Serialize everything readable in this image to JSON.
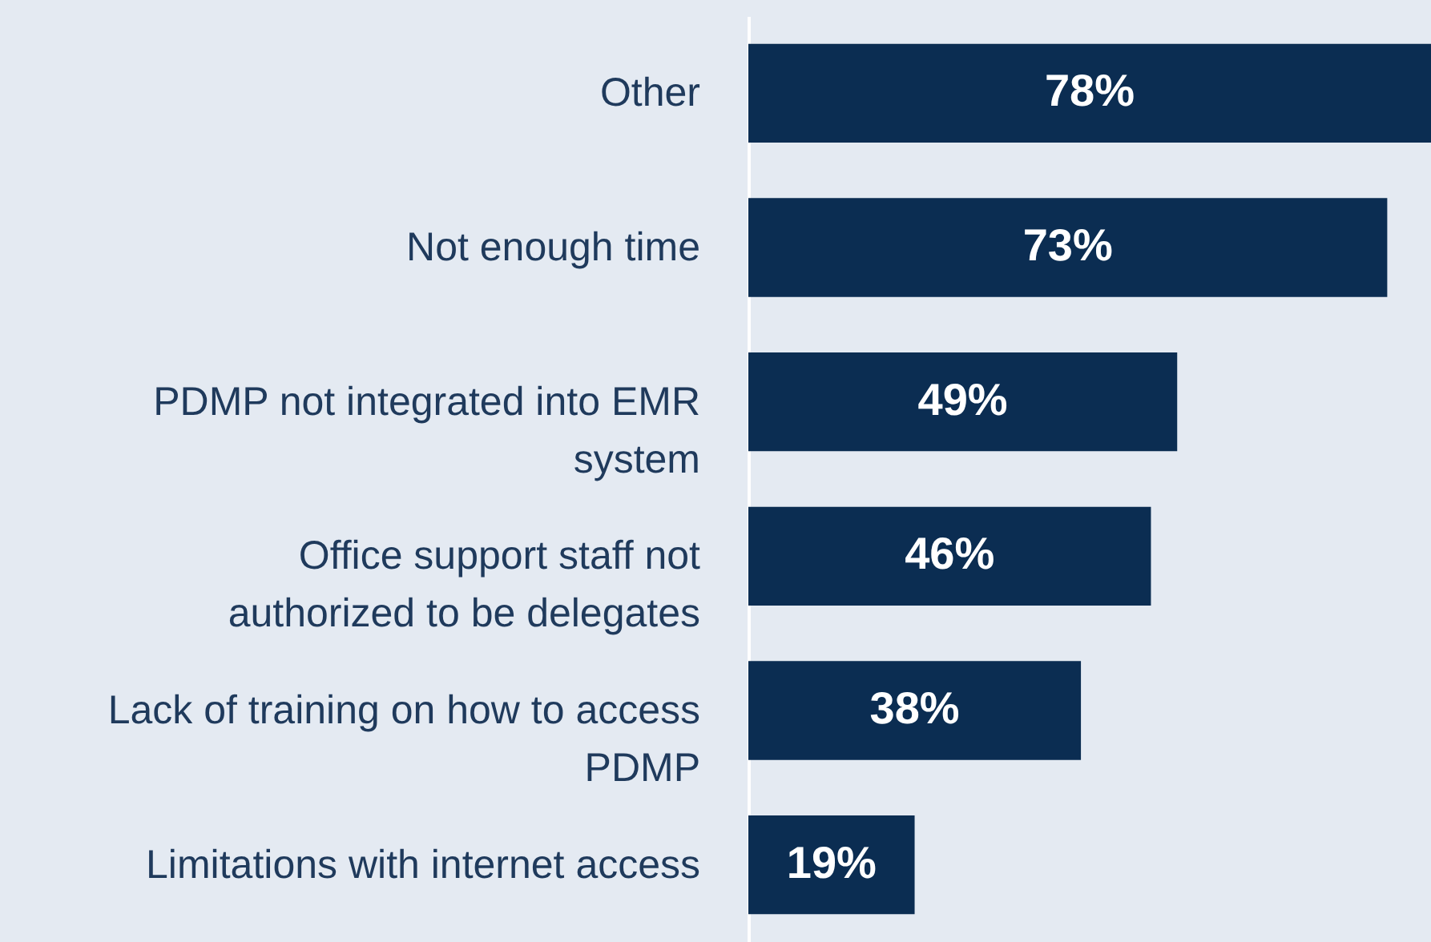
{
  "chart_data": {
    "type": "bar",
    "orientation": "horizontal",
    "categories": [
      "Other",
      "Not enough time",
      "PDMP not integrated into EMR system",
      "Office support staff not authorized to be delegates",
      "Lack of training on how to access PDMP",
      "Limitations with internet access"
    ],
    "values": [
      78,
      73,
      49,
      46,
      38,
      19
    ],
    "value_labels": [
      "78%",
      "73%",
      "49%",
      "46%",
      "38%",
      "19%"
    ],
    "color": "#0b2d52",
    "grid": false,
    "tick_labels": "y"
  }
}
